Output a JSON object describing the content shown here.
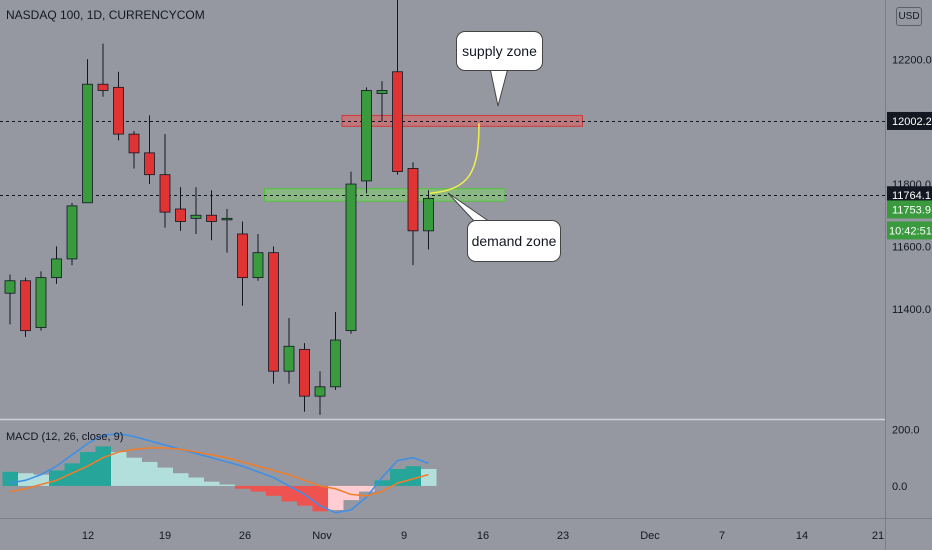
{
  "header": {
    "title": "NASDAQ 100, 1D, CURRENCYCOM",
    "currency_label": "USD"
  },
  "annotations": {
    "supply_label": "supply zone",
    "demand_label": "demand zone"
  },
  "colors": {
    "up": "#3a9a3e",
    "down": "#e03333",
    "background": "#9598a1",
    "supply_zone": "#e05c5c",
    "demand_zone": "#7fd36a",
    "curve": "#f1f14a",
    "macd_line": "#3b8fe8",
    "signal_line": "#ef7d2a",
    "hist_pos_strong": "#26a69a",
    "hist_pos_weak": "#b2dfdb",
    "hist_neg_strong": "#ef5350",
    "hist_neg_weak": "#ffcdd2"
  },
  "chart_data": [
    {
      "type": "candlestick",
      "title": "NASDAQ 100, 1D, CURRENCYCOM",
      "x_tick_labels": [
        "12",
        "19",
        "26",
        "Nov",
        "9",
        "16",
        "23",
        "Dec",
        "7",
        "14",
        "21"
      ],
      "y_ticks": [
        11400.0,
        11600.0,
        11800.0,
        12000.0,
        12200.0
      ],
      "ylim": [
        11050,
        12390
      ],
      "price_labels": [
        {
          "value": 12002.2,
          "text": "12002.2",
          "style": "line"
        },
        {
          "value": 11764.1,
          "text": "11764.1",
          "style": "line"
        },
        {
          "value": 11753.9,
          "text": "11753.9",
          "style": "last"
        }
      ],
      "countdown": "10:42:51",
      "candles": [
        {
          "date": "Oct 5",
          "open": 11450,
          "high": 11510,
          "low": 11350,
          "close": 11490
        },
        {
          "date": "Oct 6",
          "open": 11490,
          "high": 11500,
          "low": 11310,
          "close": 11330
        },
        {
          "date": "Oct 7",
          "open": 11340,
          "high": 11520,
          "low": 11330,
          "close": 11500
        },
        {
          "date": "Oct 8",
          "open": 11500,
          "high": 11600,
          "low": 11480,
          "close": 11560
        },
        {
          "date": "Oct 9",
          "open": 11560,
          "high": 11740,
          "low": 11540,
          "close": 11730
        },
        {
          "date": "Oct 12",
          "open": 11740,
          "high": 12200,
          "low": 11740,
          "close": 12120
        },
        {
          "date": "Oct 13",
          "open": 12120,
          "high": 12250,
          "low": 12080,
          "close": 12100
        },
        {
          "date": "Oct 14",
          "open": 12110,
          "high": 12160,
          "low": 11940,
          "close": 11960
        },
        {
          "date": "Oct 15",
          "open": 11960,
          "high": 11970,
          "low": 11850,
          "close": 11900
        },
        {
          "date": "Oct 16",
          "open": 11900,
          "high": 12020,
          "low": 11800,
          "close": 11830
        },
        {
          "date": "Oct 19",
          "open": 11830,
          "high": 11960,
          "low": 11660,
          "close": 11710
        },
        {
          "date": "Oct 20",
          "open": 11720,
          "high": 11790,
          "low": 11650,
          "close": 11680
        },
        {
          "date": "Oct 21",
          "open": 11690,
          "high": 11790,
          "low": 11640,
          "close": 11700
        },
        {
          "date": "Oct 22",
          "open": 11700,
          "high": 11780,
          "low": 11620,
          "close": 11680
        },
        {
          "date": "Oct 23",
          "open": 11690,
          "high": 11720,
          "low": 11580,
          "close": 11690
        },
        {
          "date": "Oct 26",
          "open": 11640,
          "high": 11680,
          "low": 11410,
          "close": 11500
        },
        {
          "date": "Oct 27",
          "open": 11500,
          "high": 11640,
          "low": 11490,
          "close": 11580
        },
        {
          "date": "Oct 28",
          "open": 11580,
          "high": 11600,
          "low": 11160,
          "close": 11200
        },
        {
          "date": "Oct 29",
          "open": 11200,
          "high": 11370,
          "low": 11160,
          "close": 11280
        },
        {
          "date": "Oct 30",
          "open": 11270,
          "high": 11290,
          "low": 11070,
          "close": 11120
        },
        {
          "date": "Nov 2",
          "open": 11120,
          "high": 11200,
          "low": 11060,
          "close": 11150
        },
        {
          "date": "Nov 3",
          "open": 11150,
          "high": 11390,
          "low": 11140,
          "close": 11300
        },
        {
          "date": "Nov 4",
          "open": 11330,
          "high": 11840,
          "low": 11320,
          "close": 11800
        },
        {
          "date": "Nov 5",
          "open": 11810,
          "high": 12110,
          "low": 11770,
          "close": 12100
        },
        {
          "date": "Nov 6",
          "open": 12090,
          "high": 12130,
          "low": 12000,
          "close": 12100
        },
        {
          "date": "Nov 9",
          "open": 12160,
          "high": 12390,
          "low": 11830,
          "close": 11840
        },
        {
          "date": "Nov 10",
          "open": 11850,
          "high": 11870,
          "low": 11540,
          "close": 11650
        },
        {
          "date": "Nov 11",
          "open": 11650,
          "high": 11780,
          "low": 11590,
          "close": 11754
        }
      ],
      "zones": [
        {
          "name": "supply zone",
          "from_date": "Nov 4",
          "to_date": "Nov 25",
          "low": 11985,
          "high": 12020
        },
        {
          "name": "demand zone",
          "from_date": "Oct 28",
          "to_date": "Nov 18",
          "low": 11745,
          "high": 11785
        }
      ]
    },
    {
      "type": "histogram+line",
      "title": "MACD (12, 26, close, 9)",
      "y_ticks": [
        0.0,
        200.0
      ],
      "ylim": [
        -110,
        230
      ],
      "histogram": [
        50,
        45,
        40,
        55,
        80,
        120,
        140,
        120,
        100,
        85,
        65,
        45,
        30,
        15,
        5,
        -10,
        -20,
        -35,
        -55,
        -70,
        -90,
        -85,
        -50,
        -20,
        20,
        60,
        70,
        60
      ],
      "series": [
        {
          "values": [
            10,
            20,
            40,
            70,
            110,
            150,
            180,
            185,
            175,
            160,
            145,
            130,
            115,
            100,
            85,
            70,
            50,
            30,
            0,
            -30,
            -70,
            -95,
            -85,
            -40,
            30,
            90,
            100,
            80
          ]
        },
        {
          "values": [
            -20,
            -10,
            5,
            20,
            45,
            70,
            100,
            120,
            130,
            135,
            135,
            130,
            120,
            110,
            100,
            85,
            70,
            55,
            40,
            20,
            0,
            -10,
            -30,
            -35,
            -20,
            10,
            25,
            40
          ]
        }
      ]
    }
  ]
}
